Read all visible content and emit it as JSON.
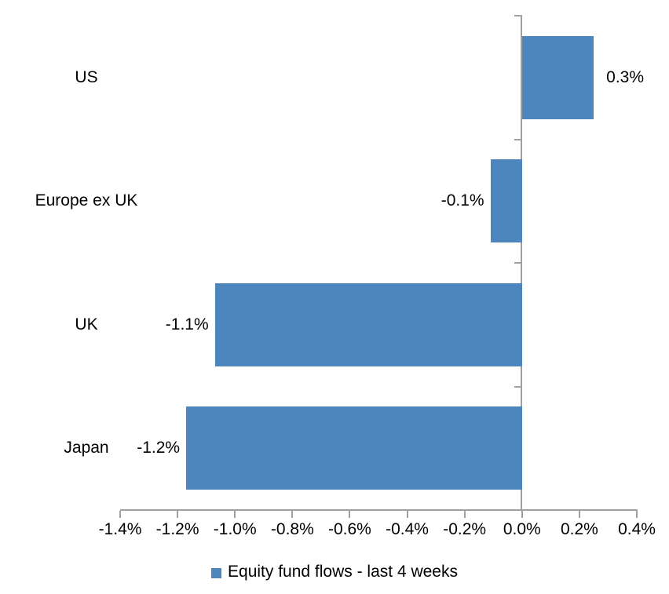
{
  "chart_data": {
    "type": "bar",
    "orientation": "horizontal",
    "title": "",
    "categories": [
      "US",
      "Europe ex UK",
      "UK",
      "Japan"
    ],
    "values": [
      0.3,
      -0.1,
      -1.1,
      -1.2
    ],
    "plot_values": [
      0.25,
      -0.11,
      -1.07,
      -1.17
    ],
    "data_labels": [
      "0.3%",
      "-0.1%",
      "-1.1%",
      "-1.2%"
    ],
    "x_ticks": [
      -1.4,
      -1.2,
      -1.0,
      -0.8,
      -0.6,
      -0.4,
      -0.2,
      0.0,
      0.2,
      0.4
    ],
    "x_tick_labels": [
      "-1.4%",
      "-1.2%",
      "-1.0%",
      "-0.8%",
      "-0.6%",
      "-0.4%",
      "-0.2%",
      "0.0%",
      "0.2%",
      "0.4%"
    ],
    "xlim": [
      -1.4,
      0.4
    ],
    "grid": false,
    "legend_position": "bottom",
    "legend": [
      {
        "label": "Equity fund flows - last 4 weeks",
        "color": "#4d86bd"
      }
    ]
  },
  "colors": {
    "bar": "#4d86bd",
    "axis": "#a0a0a0",
    "text": "#000000",
    "background": "#ffffff"
  }
}
